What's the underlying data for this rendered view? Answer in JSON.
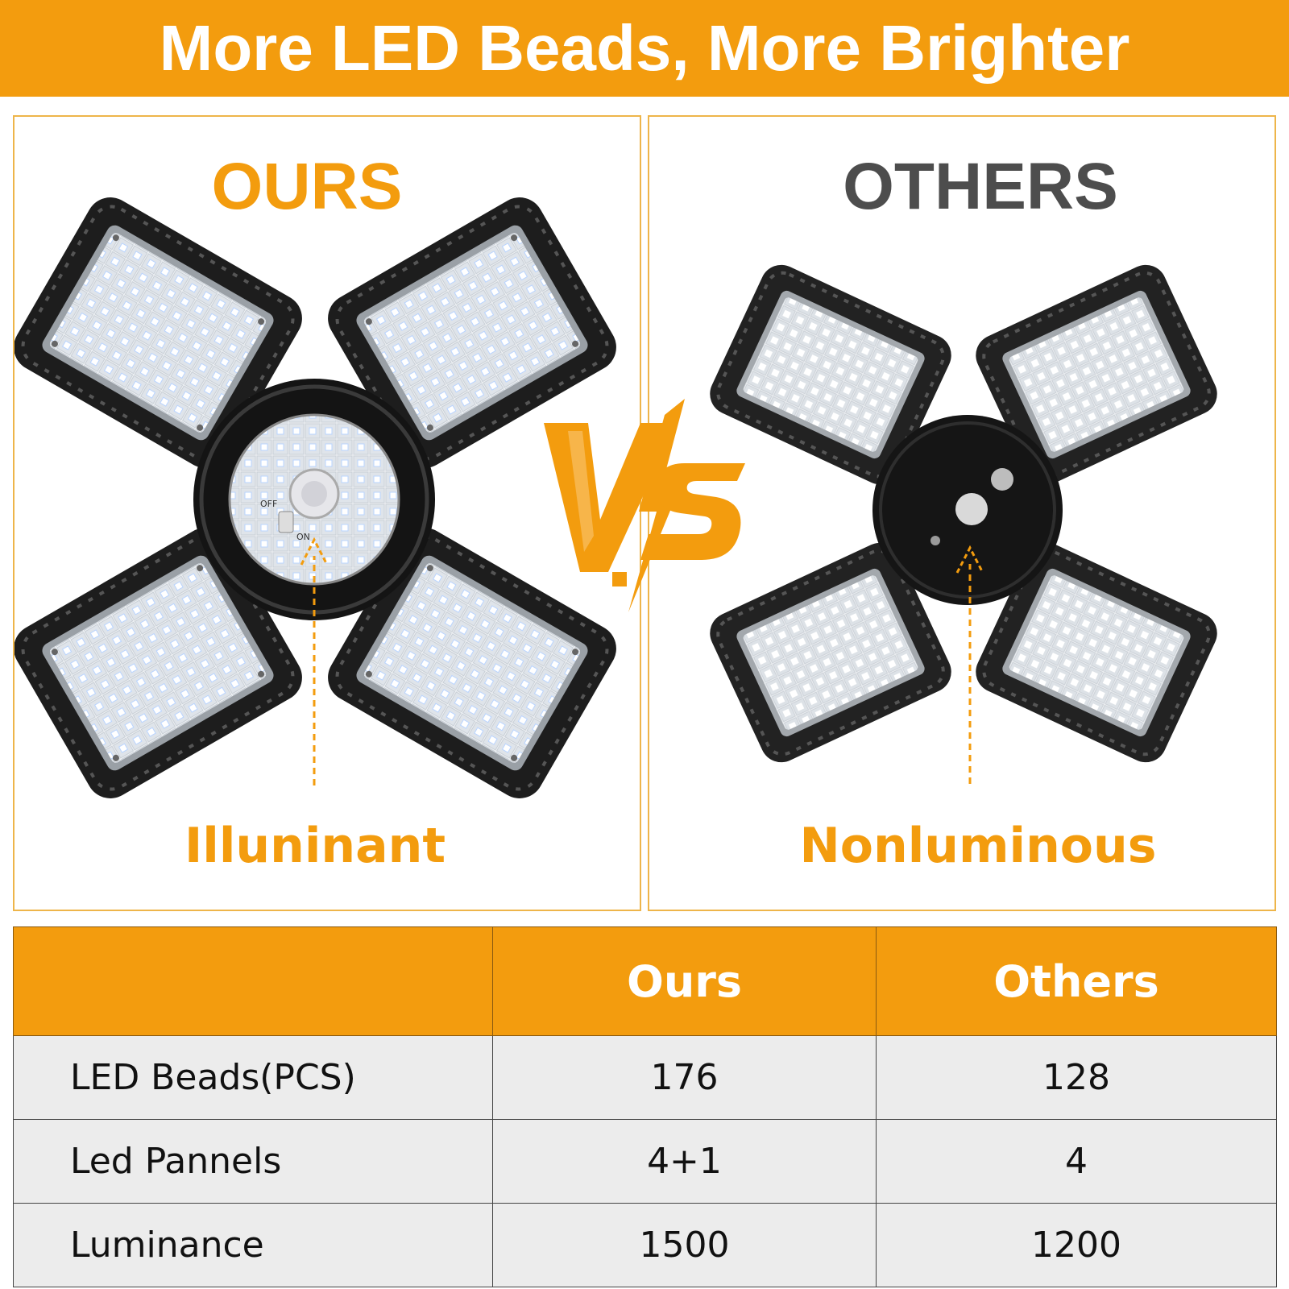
{
  "banner": {
    "title": "More LED Beads, More Brighter"
  },
  "left_panel": {
    "heading": "OURS",
    "caption": "Illuninant",
    "switch_off": "OFF",
    "switch_on": "ON"
  },
  "right_panel": {
    "heading": "OTHERS",
    "caption": "Nonluminous"
  },
  "vs_icon": "vs-lightning-icon",
  "colors": {
    "accent": "#f39c0e",
    "panel_border": "#eeb54a",
    "dark_text": "#4d4d4d",
    "row_bg": "#ececec"
  },
  "table": {
    "header": [
      "",
      "Ours",
      "Others"
    ],
    "rows": [
      {
        "label": "LED Beads(PCS)",
        "ours": "176",
        "others": "128"
      },
      {
        "label": "Led Pannels",
        "ours": "4+1",
        "others": "4"
      },
      {
        "label": "Luminance",
        "ours": "1500",
        "others": "1200"
      }
    ]
  }
}
